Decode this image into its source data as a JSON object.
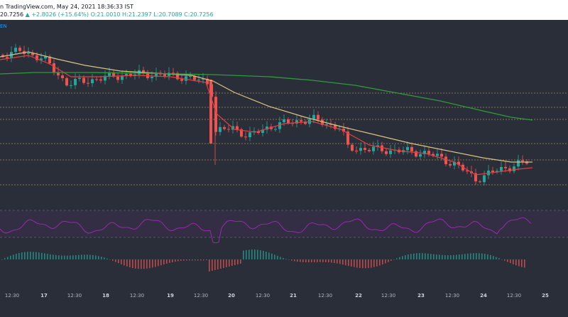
{
  "header": {
    "line1": "n TradingView.com, May 24, 2021 18:36:33 IST",
    "ohlc_prefix": "20.7256",
    "change": "▲ +2.8026 (+15.64%)",
    "ohlc_rest": "O:21.0010 H:21.2397 L:20.7089 C:20.7256",
    "pair": "EN"
  },
  "colors": {
    "background": "#2a2e39",
    "up": "#26a69a",
    "down": "#ef5350",
    "ema_yellow": "#d8c382",
    "ema_red": "#e04040",
    "ema_green": "#2e9c3a",
    "rsi": "#9c27b0",
    "levels": "#a88a5a"
  },
  "chart_data": {
    "type": "candlestick",
    "x_ticks": [
      "12:30",
      "17",
      "12:30",
      "18",
      "12:30",
      "19",
      "12:30",
      "20",
      "12:30",
      "21",
      "12:30",
      "22",
      "12:30",
      "23",
      "12:30",
      "24",
      "12:30",
      "25"
    ],
    "indicators": [
      "EMA (yellow)",
      "EMA (red)",
      "EMA (green)",
      "RSI",
      "MACD histogram"
    ],
    "horizontal_levels": 6,
    "last_close": 20.7256
  }
}
